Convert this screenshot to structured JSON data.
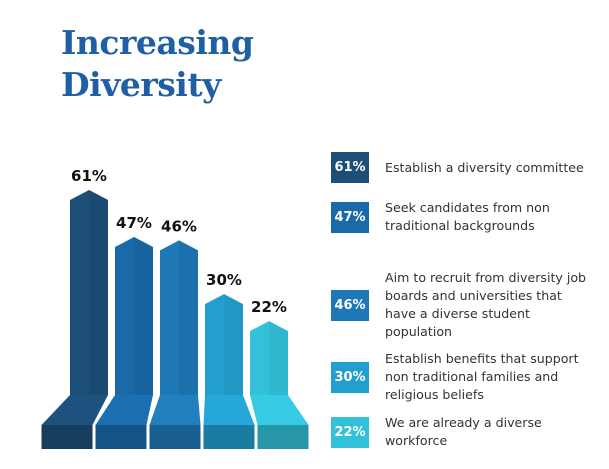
{
  "title_lines": [
    "Increasing",
    "Diversity"
  ],
  "chart_data": {
    "type": "bar",
    "categories": [
      "Establish a diversity committee",
      "Seek candidates from non traditional backgrounds",
      "Aim to recruit from diversity job boards and universities that have a diverse student population",
      "Establish benefits that support non traditional families and religious beliefs",
      "We are already a diverse workforce"
    ],
    "values": [
      61,
      47,
      46,
      30,
      22
    ],
    "value_labels": [
      "61%",
      "47%",
      "46%",
      "30%",
      "22%"
    ],
    "unit": "%",
    "colors": [
      "#1c4e78",
      "#1a6aaa",
      "#1f78b6",
      "#239fcf",
      "#33c0d9"
    ]
  },
  "legend": [
    {
      "badge": "61%",
      "text": "Establish a diversity committee",
      "color": "#1c4e78"
    },
    {
      "badge": "47%",
      "text": "Seek candidates from non traditional backgrounds",
      "color": "#1a6aaa"
    },
    {
      "badge": "46%",
      "text": "Aim to recruit from diversity job boards and universities that have a diverse student population",
      "color": "#1f78b6"
    },
    {
      "badge": "30%",
      "text": "Establish benefits that support non traditional families and religious beliefs",
      "color": "#239fcf"
    },
    {
      "badge": "22%",
      "text": "We are already a diverse workforce",
      "color": "#33c0d9"
    }
  ]
}
